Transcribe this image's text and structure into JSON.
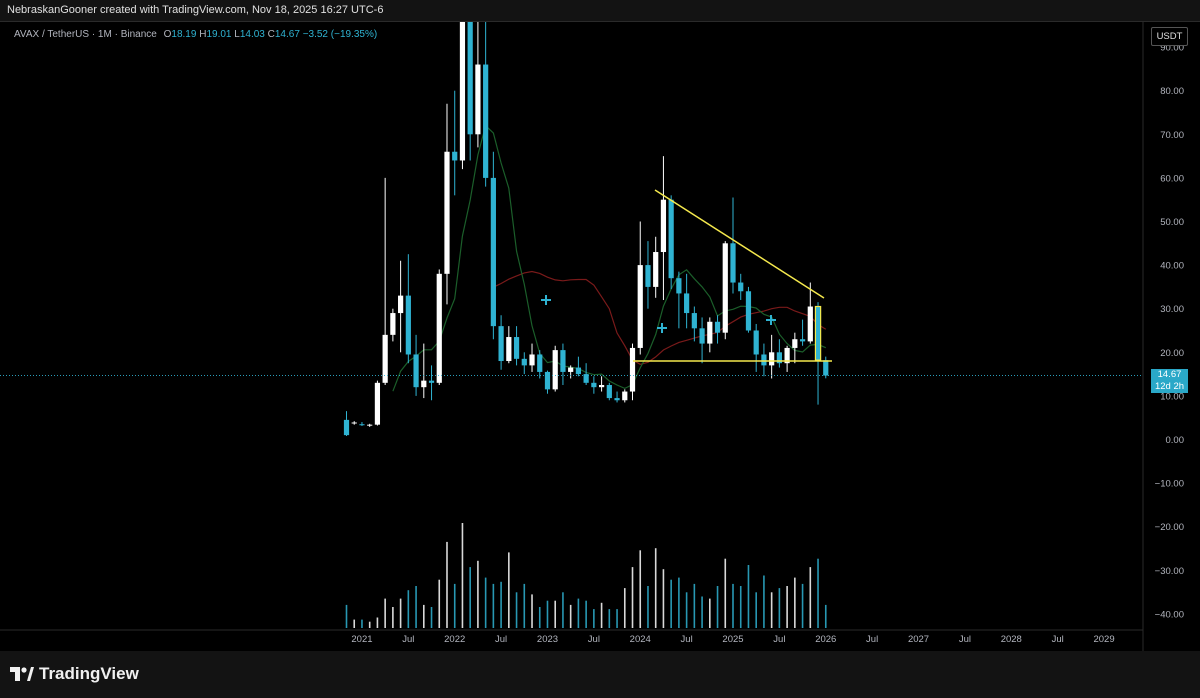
{
  "header": {
    "credit": "NebraskanGooner created with TradingView.com, Nov 18, 2025 16:27 UTC-6"
  },
  "legend": {
    "symbol": "AVAX / TetherUS · 1M · Binance",
    "open_label": "O",
    "open": "18.19",
    "high_label": "H",
    "high": "19.01",
    "low_label": "L",
    "low": "14.03",
    "close_label": "C",
    "close": "14.67",
    "change": "−3.52 (−19.35%)"
  },
  "price_axis": {
    "unit": "USDT",
    "last_price": "14.67",
    "countdown": "12d 2h"
  },
  "footer": {
    "brand": "TradingView"
  },
  "colors": {
    "up": "#ffffff",
    "down": "#2fb3d2",
    "trendline": "#f5e94d",
    "ma_fast": "#1b5e2a",
    "ma_slow": "#7a1a1a",
    "background": "#000000"
  },
  "icons": {
    "logo": "tradingview-logo"
  },
  "chart_data": {
    "type": "candlestick",
    "interval": "1M",
    "x_ticks": [
      "2021",
      "Jul",
      "2022",
      "Jul",
      "2023",
      "Jul",
      "2024",
      "Jul",
      "2025",
      "Jul",
      "2026",
      "Jul",
      "2027",
      "Jul",
      "2028",
      "Jul",
      "2029"
    ],
    "y_ticks": [
      "90.00",
      "80.00",
      "70.00",
      "60.00",
      "50.00",
      "40.00",
      "30.00",
      "20.00",
      "10.00",
      "0.00",
      "−10.00",
      "−20.00",
      "−30.00",
      "−40.00"
    ],
    "ylim": [
      -42,
      93
    ],
    "grid": false,
    "candles": [
      {
        "o": 4.5,
        "h": 6.5,
        "l": 0.8,
        "c": 1.0
      },
      {
        "o": 3.7,
        "h": 4.2,
        "l": 3.4,
        "c": 3.9
      },
      {
        "o": 3.5,
        "h": 4.0,
        "l": 3.1,
        "c": 3.3
      },
      {
        "o": 3.2,
        "h": 3.6,
        "l": 2.9,
        "c": 3.4
      },
      {
        "o": 3.4,
        "h": 13.5,
        "l": 3.2,
        "c": 13.0
      },
      {
        "o": 13.0,
        "h": 60.0,
        "l": 12.5,
        "c": 24.0
      },
      {
        "o": 24.0,
        "h": 30.0,
        "l": 22.5,
        "c": 29.0
      },
      {
        "o": 29.0,
        "h": 41.0,
        "l": 20.0,
        "c": 33.0
      },
      {
        "o": 33.0,
        "h": 42.5,
        "l": 17.5,
        "c": 19.5
      },
      {
        "o": 19.5,
        "h": 24.0,
        "l": 10.0,
        "c": 12.0
      },
      {
        "o": 12.0,
        "h": 22.0,
        "l": 9.5,
        "c": 13.5
      },
      {
        "o": 13.5,
        "h": 17.0,
        "l": 9.0,
        "c": 13.0
      },
      {
        "o": 13.0,
        "h": 39.0,
        "l": 12.5,
        "c": 38.0
      },
      {
        "o": 38.0,
        "h": 77.0,
        "l": 31.0,
        "c": 66.0
      },
      {
        "o": 66.0,
        "h": 80.0,
        "l": 56.0,
        "c": 64.0
      },
      {
        "o": 64.0,
        "h": 146.0,
        "l": 62.0,
        "c": 120.0
      },
      {
        "o": 120.0,
        "h": 128.0,
        "l": 64.0,
        "c": 70.0
      },
      {
        "o": 70.0,
        "h": 98.0,
        "l": 67.0,
        "c": 86.0
      },
      {
        "o": 86.0,
        "h": 110.0,
        "l": 58.0,
        "c": 60.0
      },
      {
        "o": 60.0,
        "h": 66.0,
        "l": 23.0,
        "c": 26.0
      },
      {
        "o": 26.0,
        "h": 28.5,
        "l": 16.0,
        "c": 18.0
      },
      {
        "o": 18.0,
        "h": 26.0,
        "l": 17.5,
        "c": 23.5
      },
      {
        "o": 23.5,
        "h": 26.0,
        "l": 17.0,
        "c": 18.5
      },
      {
        "o": 18.5,
        "h": 20.0,
        "l": 15.0,
        "c": 17.0
      },
      {
        "o": 17.0,
        "h": 22.0,
        "l": 15.5,
        "c": 19.5
      },
      {
        "o": 19.5,
        "h": 20.5,
        "l": 14.0,
        "c": 15.5
      },
      {
        "o": 15.5,
        "h": 15.8,
        "l": 10.5,
        "c": 11.5
      },
      {
        "o": 11.5,
        "h": 21.5,
        "l": 11.0,
        "c": 20.5
      },
      {
        "o": 20.5,
        "h": 22.0,
        "l": 12.5,
        "c": 15.5
      },
      {
        "o": 15.5,
        "h": 17.0,
        "l": 14.0,
        "c": 16.5
      },
      {
        "o": 16.5,
        "h": 19.0,
        "l": 14.5,
        "c": 15.0
      },
      {
        "o": 15.0,
        "h": 17.5,
        "l": 12.5,
        "c": 13.0
      },
      {
        "o": 13.0,
        "h": 14.5,
        "l": 10.5,
        "c": 12.0
      },
      {
        "o": 12.0,
        "h": 14.5,
        "l": 11.0,
        "c": 12.5
      },
      {
        "o": 12.5,
        "h": 13.0,
        "l": 9.0,
        "c": 9.5
      },
      {
        "o": 9.5,
        "h": 11.0,
        "l": 8.5,
        "c": 9.0
      },
      {
        "o": 9.0,
        "h": 11.5,
        "l": 8.5,
        "c": 11.0
      },
      {
        "o": 11.0,
        "h": 22.0,
        "l": 9.0,
        "c": 21.0
      },
      {
        "o": 21.0,
        "h": 50.0,
        "l": 19.5,
        "c": 40.0
      },
      {
        "o": 40.0,
        "h": 45.5,
        "l": 30.0,
        "c": 35.0
      },
      {
        "o": 35.0,
        "h": 46.5,
        "l": 32.5,
        "c": 43.0
      },
      {
        "o": 43.0,
        "h": 65.0,
        "l": 32.0,
        "c": 55.0
      },
      {
        "o": 55.0,
        "h": 56.0,
        "l": 34.5,
        "c": 37.0
      },
      {
        "o": 37.0,
        "h": 38.5,
        "l": 25.5,
        "c": 33.5
      },
      {
        "o": 33.5,
        "h": 38.0,
        "l": 25.5,
        "c": 29.0
      },
      {
        "o": 29.0,
        "h": 30.5,
        "l": 22.5,
        "c": 25.5
      },
      {
        "o": 25.5,
        "h": 28.0,
        "l": 17.5,
        "c": 22.0
      },
      {
        "o": 22.0,
        "h": 28.0,
        "l": 20.0,
        "c": 27.0
      },
      {
        "o": 27.0,
        "h": 28.5,
        "l": 22.0,
        "c": 24.5
      },
      {
        "o": 24.5,
        "h": 45.5,
        "l": 23.0,
        "c": 45.0
      },
      {
        "o": 45.0,
        "h": 55.5,
        "l": 33.5,
        "c": 36.0
      },
      {
        "o": 36.0,
        "h": 38.0,
        "l": 32.0,
        "c": 34.0
      },
      {
        "o": 34.0,
        "h": 35.0,
        "l": 24.5,
        "c": 25.0
      },
      {
        "o": 25.0,
        "h": 26.5,
        "l": 15.5,
        "c": 19.5
      },
      {
        "o": 19.5,
        "h": 22.0,
        "l": 14.5,
        "c": 17.0
      },
      {
        "o": 17.0,
        "h": 24.0,
        "l": 14.0,
        "c": 20.0
      },
      {
        "o": 20.0,
        "h": 23.0,
        "l": 16.5,
        "c": 17.5
      },
      {
        "o": 17.5,
        "h": 21.5,
        "l": 15.5,
        "c": 21.0
      },
      {
        "o": 21.0,
        "h": 24.5,
        "l": 17.5,
        "c": 23.0
      },
      {
        "o": 23.0,
        "h": 27.5,
        "l": 21.5,
        "c": 22.5
      },
      {
        "o": 22.5,
        "h": 36.0,
        "l": 22.0,
        "c": 30.5
      },
      {
        "o": 30.5,
        "h": 31.5,
        "l": 8.0,
        "c": 18.2
      },
      {
        "o": 18.19,
        "h": 19.01,
        "l": 14.03,
        "c": 14.67
      }
    ],
    "volume": [
      11,
      4,
      4,
      3,
      5,
      14,
      10,
      14,
      18,
      20,
      11,
      10,
      23,
      41,
      21,
      50,
      29,
      32,
      24,
      21,
      22,
      36,
      17,
      21,
      16,
      10,
      13,
      13,
      17,
      11,
      14,
      13,
      9,
      12,
      9,
      9,
      19,
      29,
      37,
      20,
      38,
      28,
      23,
      24,
      17,
      21,
      15,
      14,
      20,
      33,
      21,
      20,
      30,
      17,
      25,
      17,
      19,
      20,
      24,
      21,
      29,
      33,
      11
    ]
  }
}
